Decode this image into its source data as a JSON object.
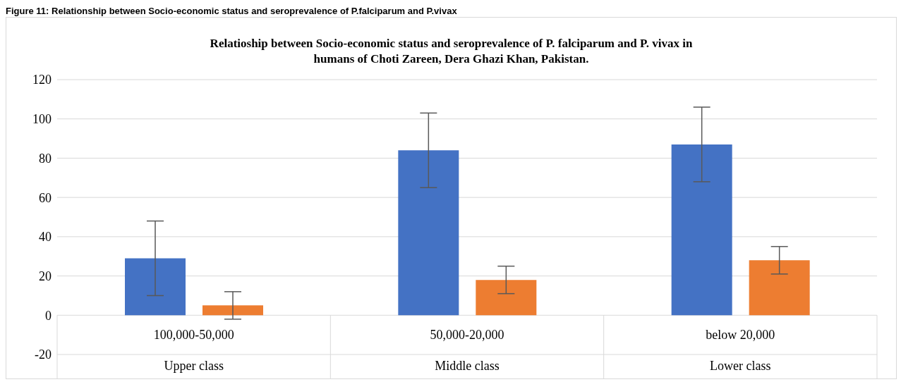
{
  "chart_data": {
    "type": "bar",
    "title": "Relatioship between Socio-economic status and seroprevalence of P. falciparum and P. vivax in humans of Choti Zareen, Dera Ghazi Khan, Pakistan.",
    "categories": [
      "100,000-50,000",
      "50,000-20,000",
      "below 20,000"
    ],
    "series": [
      {
        "color": "#4472c4",
        "values": [
          29,
          84,
          87
        ],
        "errors": [
          19,
          19,
          19
        ]
      },
      {
        "color": "#ed7d31",
        "values": [
          5,
          18,
          28
        ],
        "errors": [
          7,
          7,
          7
        ]
      }
    ],
    "ylim": [
      -20,
      120
    ],
    "yticks": [
      -20,
      0,
      20,
      40,
      60,
      80,
      100,
      120
    ],
    "grid": "y",
    "legend": false,
    "annotations": [
      "Figure 11: Relationship between Socio-economic status and seroprevalence of P.falciparum and P.vivax",
      "Upper class",
      "Middle class",
      "Lower class"
    ]
  }
}
